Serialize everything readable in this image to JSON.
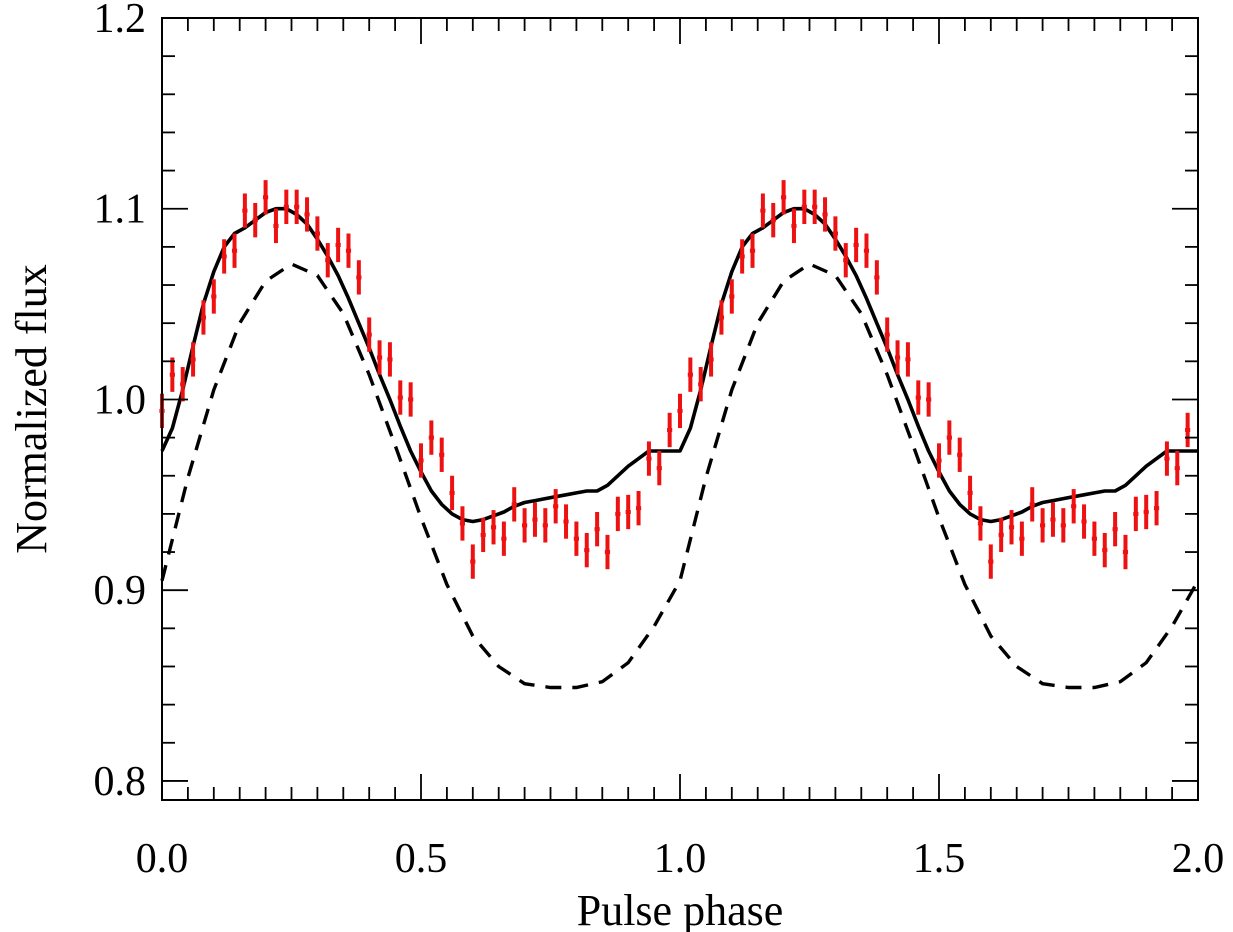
{
  "chart_data": {
    "type": "scatter",
    "title": "",
    "xlabel": "Pulse phase",
    "ylabel": "Normalized flux",
    "xlim": [
      0.0,
      2.0
    ],
    "ylim": [
      0.79,
      1.2
    ],
    "x_ticks": [
      {
        "value": 0.0,
        "label": "0.0"
      },
      {
        "value": 0.5,
        "label": "0.5"
      },
      {
        "value": 1.0,
        "label": "1.0"
      },
      {
        "value": 1.5,
        "label": "1.5"
      },
      {
        "value": 2.0,
        "label": "2.0"
      }
    ],
    "y_ticks": [
      {
        "value": 0.8,
        "label": "0.8"
      },
      {
        "value": 0.9,
        "label": "0.9"
      },
      {
        "value": 1.0,
        "label": "1.0"
      },
      {
        "value": 1.1,
        "label": "1.1"
      },
      {
        "value": 1.2,
        "label": "1.2"
      }
    ],
    "x_minor_step": 0.05,
    "y_minor_step": 0.02,
    "grid": false,
    "legend": "none",
    "colors": {
      "data_points": "#ee1111",
      "model_solid": "#000000",
      "model_dashed": "#000000",
      "axes": "#000000"
    },
    "series": [
      {
        "role": "data",
        "style": "red crosses with error bars",
        "phase_width": 0.01,
        "y_error": 0.009,
        "points": [
          [
            0.0,
            0.994
          ],
          [
            0.02,
            1.013
          ],
          [
            0.04,
            1.008
          ],
          [
            0.06,
            1.021
          ],
          [
            0.08,
            1.043
          ],
          [
            0.1,
            1.054
          ],
          [
            0.12,
            1.075
          ],
          [
            0.14,
            1.078
          ],
          [
            0.16,
            1.099
          ],
          [
            0.18,
            1.094
          ],
          [
            0.2,
            1.106
          ],
          [
            0.22,
            1.091
          ],
          [
            0.24,
            1.101
          ],
          [
            0.26,
            1.101
          ],
          [
            0.28,
            1.097
          ],
          [
            0.3,
            1.087
          ],
          [
            0.32,
            1.073
          ],
          [
            0.34,
            1.081
          ],
          [
            0.36,
            1.078
          ],
          [
            0.38,
            1.064
          ],
          [
            0.4,
            1.034
          ],
          [
            0.42,
            1.022
          ],
          [
            0.44,
            1.021
          ],
          [
            0.46,
            1.001
          ],
          [
            0.48,
            1.0
          ],
          [
            0.5,
            0.968
          ],
          [
            0.52,
            0.98
          ],
          [
            0.54,
            0.971
          ],
          [
            0.56,
            0.951
          ],
          [
            0.58,
            0.935
          ],
          [
            0.6,
            0.915
          ],
          [
            0.62,
            0.929
          ],
          [
            0.64,
            0.933
          ],
          [
            0.66,
            0.927
          ],
          [
            0.68,
            0.945
          ],
          [
            0.7,
            0.934
          ],
          [
            0.72,
            0.937
          ],
          [
            0.74,
            0.934
          ],
          [
            0.76,
            0.944
          ],
          [
            0.78,
            0.936
          ],
          [
            0.8,
            0.927
          ],
          [
            0.82,
            0.921
          ],
          [
            0.84,
            0.932
          ],
          [
            0.86,
            0.92
          ],
          [
            0.88,
            0.94
          ],
          [
            0.9,
            0.941
          ],
          [
            0.92,
            0.943
          ],
          [
            0.94,
            0.969
          ],
          [
            0.96,
            0.964
          ],
          [
            0.98,
            0.984
          ],
          [
            1.0,
            0.994
          ],
          [
            1.02,
            1.013
          ],
          [
            1.04,
            1.008
          ],
          [
            1.06,
            1.021
          ],
          [
            1.08,
            1.043
          ],
          [
            1.1,
            1.054
          ],
          [
            1.12,
            1.075
          ],
          [
            1.14,
            1.078
          ],
          [
            1.16,
            1.099
          ],
          [
            1.18,
            1.094
          ],
          [
            1.2,
            1.106
          ],
          [
            1.22,
            1.091
          ],
          [
            1.24,
            1.101
          ],
          [
            1.26,
            1.101
          ],
          [
            1.28,
            1.097
          ],
          [
            1.3,
            1.087
          ],
          [
            1.32,
            1.073
          ],
          [
            1.34,
            1.081
          ],
          [
            1.36,
            1.078
          ],
          [
            1.38,
            1.064
          ],
          [
            1.4,
            1.034
          ],
          [
            1.42,
            1.022
          ],
          [
            1.44,
            1.021
          ],
          [
            1.46,
            1.001
          ],
          [
            1.48,
            1.0
          ],
          [
            1.5,
            0.968
          ],
          [
            1.52,
            0.98
          ],
          [
            1.54,
            0.971
          ],
          [
            1.56,
            0.951
          ],
          [
            1.58,
            0.935
          ],
          [
            1.6,
            0.915
          ],
          [
            1.62,
            0.929
          ],
          [
            1.64,
            0.933
          ],
          [
            1.66,
            0.927
          ],
          [
            1.68,
            0.945
          ],
          [
            1.7,
            0.934
          ],
          [
            1.72,
            0.937
          ],
          [
            1.74,
            0.934
          ],
          [
            1.76,
            0.944
          ],
          [
            1.78,
            0.936
          ],
          [
            1.8,
            0.927
          ],
          [
            1.82,
            0.921
          ],
          [
            1.84,
            0.932
          ],
          [
            1.86,
            0.92
          ],
          [
            1.88,
            0.94
          ],
          [
            1.9,
            0.941
          ],
          [
            1.92,
            0.943
          ],
          [
            1.94,
            0.969
          ],
          [
            1.96,
            0.964
          ],
          [
            1.98,
            0.984
          ]
        ]
      },
      {
        "role": "model",
        "style": "solid black line",
        "points": [
          [
            0.0,
            0.973
          ],
          [
            0.02,
            0.985
          ],
          [
            0.04,
            1.005
          ],
          [
            0.06,
            1.028
          ],
          [
            0.08,
            1.05
          ],
          [
            0.1,
            1.067
          ],
          [
            0.12,
            1.08
          ],
          [
            0.14,
            1.087
          ],
          [
            0.16,
            1.09
          ],
          [
            0.18,
            1.094
          ],
          [
            0.2,
            1.098
          ],
          [
            0.22,
            1.1
          ],
          [
            0.24,
            1.1
          ],
          [
            0.26,
            1.097
          ],
          [
            0.28,
            1.092
          ],
          [
            0.3,
            1.084
          ],
          [
            0.32,
            1.075
          ],
          [
            0.34,
            1.065
          ],
          [
            0.36,
            1.053
          ],
          [
            0.38,
            1.04
          ],
          [
            0.4,
            1.027
          ],
          [
            0.42,
            1.013
          ],
          [
            0.44,
            1.0
          ],
          [
            0.46,
            0.986
          ],
          [
            0.48,
            0.973
          ],
          [
            0.5,
            0.962
          ],
          [
            0.52,
            0.952
          ],
          [
            0.54,
            0.945
          ],
          [
            0.56,
            0.94
          ],
          [
            0.58,
            0.937
          ],
          [
            0.6,
            0.936
          ],
          [
            0.62,
            0.937
          ],
          [
            0.64,
            0.939
          ],
          [
            0.66,
            0.941
          ],
          [
            0.68,
            0.944
          ],
          [
            0.7,
            0.946
          ],
          [
            0.72,
            0.947
          ],
          [
            0.74,
            0.948
          ],
          [
            0.76,
            0.949
          ],
          [
            0.78,
            0.95
          ],
          [
            0.8,
            0.951
          ],
          [
            0.82,
            0.952
          ],
          [
            0.84,
            0.952
          ],
          [
            0.86,
            0.955
          ],
          [
            0.88,
            0.96
          ],
          [
            0.9,
            0.965
          ],
          [
            0.92,
            0.969
          ]
        ]
      },
      {
        "role": "model",
        "style": "dashed black line",
        "points": [
          [
            0.0,
            0.905
          ],
          [
            0.05,
            0.959
          ],
          [
            0.1,
            1.005
          ],
          [
            0.15,
            1.04
          ],
          [
            0.2,
            1.062
          ],
          [
            0.25,
            1.071
          ],
          [
            0.3,
            1.065
          ],
          [
            0.35,
            1.045
          ],
          [
            0.4,
            1.013
          ],
          [
            0.45,
            0.976
          ],
          [
            0.5,
            0.938
          ],
          [
            0.55,
            0.903
          ],
          [
            0.6,
            0.876
          ],
          [
            0.65,
            0.86
          ],
          [
            0.7,
            0.851
          ],
          [
            0.75,
            0.849
          ],
          [
            0.8,
            0.849
          ],
          [
            0.85,
            0.852
          ],
          [
            0.9,
            0.862
          ],
          [
            0.95,
            0.881
          ],
          [
            1.0,
            0.905
          ]
        ]
      }
    ]
  }
}
